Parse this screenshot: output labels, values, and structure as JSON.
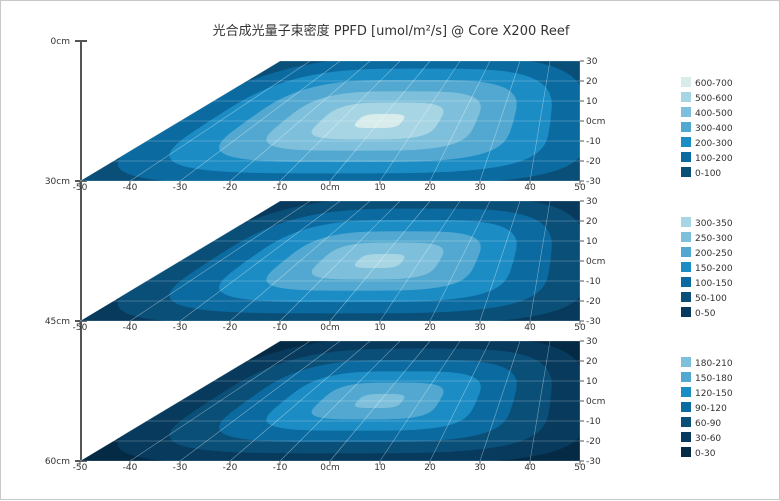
{
  "chart_data": {
    "type": "heatmap",
    "title": "光合成光量子束密度 PPFD [umol/m²/s] @ Core X200 Reef",
    "height_axis": {
      "ticks": [
        "0cm",
        "30cm",
        "45cm",
        "60cm"
      ]
    },
    "x_ticks": [
      "-50",
      "-40",
      "-30",
      "-20",
      "-10",
      "0cm",
      "10",
      "20",
      "30",
      "40",
      "50"
    ],
    "y_ticks": [
      "30",
      "20",
      "10",
      "0cm",
      "-10",
      "-20",
      "-30"
    ],
    "panels": [
      {
        "name": "depth-30cm",
        "depth": "30cm",
        "peak": 680,
        "legend": [
          "600-700",
          "500-600",
          "400-500",
          "300-400",
          "200-300",
          "100-200",
          "0-100"
        ],
        "colors": [
          "#d8ecec",
          "#a8d5e3",
          "#7ec0db",
          "#52a8d0",
          "#1b8cc4",
          "#0b6aa0",
          "#0a4f78"
        ]
      },
      {
        "name": "depth-45cm",
        "depth": "45cm",
        "peak": 340,
        "legend": [
          "300-350",
          "250-300",
          "200-250",
          "150-200",
          "100-150",
          "50-100",
          "0-50"
        ],
        "colors": [
          "#a8d5e3",
          "#7ec0db",
          "#52a8d0",
          "#1b8cc4",
          "#0b6aa0",
          "#0a4f78",
          "#073a5c"
        ]
      },
      {
        "name": "depth-60cm",
        "depth": "60cm",
        "peak": 200,
        "legend": [
          "180-210",
          "150-180",
          "120-150",
          "90-120",
          "60-90",
          "30-60",
          "0-30"
        ],
        "colors": [
          "#7ec0db",
          "#52a8d0",
          "#1b8cc4",
          "#0b6aa0",
          "#0a4f78",
          "#073a5c",
          "#052a46"
        ]
      }
    ]
  }
}
